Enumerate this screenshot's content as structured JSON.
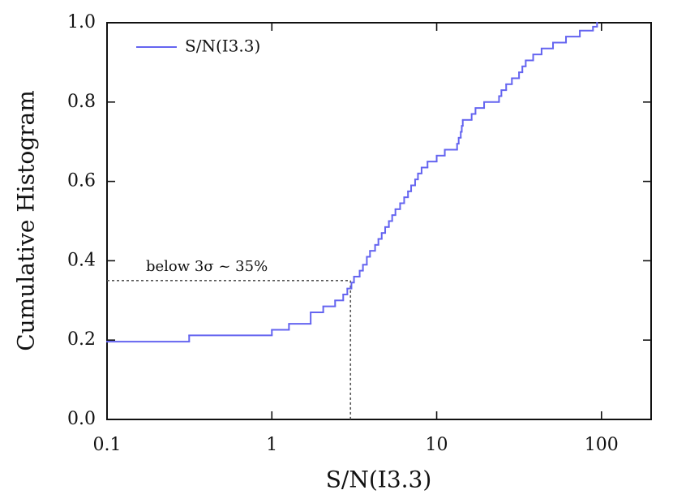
{
  "chart_data": {
    "type": "step",
    "xlabel": "S/N(I3.3)",
    "ylabel": "Cumulative Histogram",
    "xscale": "log",
    "xlim": [
      0.1,
      200
    ],
    "xticks": [
      0.1,
      1,
      10,
      100
    ],
    "ylim": [
      0,
      1
    ],
    "yticks": [
      {
        "value": 0,
        "label": "0.0"
      },
      0.2,
      0.4,
      0.6,
      0.8,
      {
        "value": 1,
        "label": "1.0"
      }
    ],
    "legend": "upper left",
    "series": [
      {
        "name": "S/N(I3.3)",
        "color": "#6464f0",
        "x": [
          0.1,
          0.315,
          1.0,
          1.27,
          1.72,
          2.05,
          2.42,
          2.71,
          2.87,
          3.04,
          3.15,
          3.41,
          3.57,
          3.77,
          3.94,
          4.23,
          4.43,
          4.64,
          4.87,
          5.13,
          5.37,
          5.62,
          6.0,
          6.35,
          6.7,
          7.0,
          7.4,
          7.7,
          8.1,
          8.8,
          10.0,
          11.2,
          13.3,
          13.6,
          14.0,
          14.2,
          14.4,
          16.3,
          17.2,
          19.4,
          23.9,
          24.7,
          26.4,
          28.6,
          31.6,
          33.1,
          34.7,
          38.5,
          43.3,
          50.8,
          60.9,
          73.9,
          88.8,
          94.0
        ],
        "values": [
          0.196,
          0.212,
          0.226,
          0.241,
          0.27,
          0.285,
          0.3,
          0.315,
          0.33,
          0.345,
          0.36,
          0.375,
          0.39,
          0.41,
          0.425,
          0.44,
          0.455,
          0.47,
          0.485,
          0.5,
          0.515,
          0.53,
          0.545,
          0.56,
          0.575,
          0.59,
          0.605,
          0.62,
          0.635,
          0.65,
          0.665,
          0.68,
          0.695,
          0.71,
          0.725,
          0.74,
          0.755,
          0.77,
          0.785,
          0.8,
          0.815,
          0.83,
          0.845,
          0.86,
          0.875,
          0.89,
          0.905,
          0.92,
          0.935,
          0.95,
          0.965,
          0.98,
          0.99,
          1.0
        ]
      }
    ],
    "annotation": {
      "text": "below 3σ ~ 35%",
      "x": 3,
      "y": 0.35
    }
  }
}
